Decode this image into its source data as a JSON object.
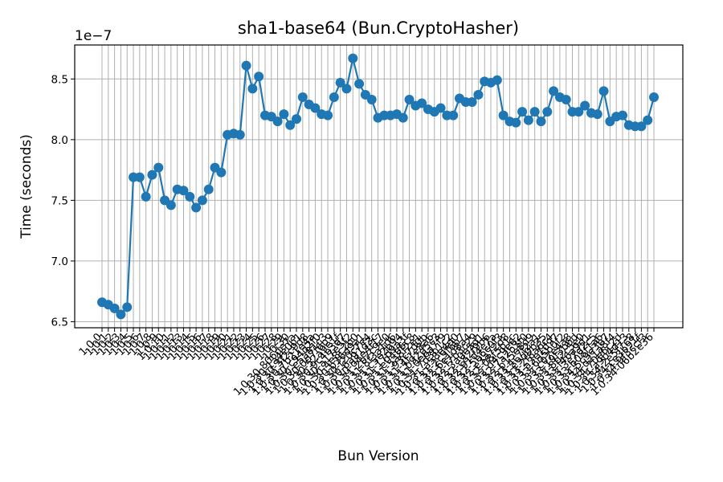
{
  "chart_data": {
    "type": "line",
    "title": "sha1-base64 (Bun.CryptoHasher)",
    "xlabel": "Bun Version",
    "ylabel": "Time (seconds)",
    "y_multiplier": "1e−7",
    "ylim": [
      6.45,
      8.78
    ],
    "yticks": [
      "6.5",
      "7.0",
      "7.5",
      "8.0",
      "8.5"
    ],
    "grid": true,
    "color": "#1f77b4",
    "categories": [
      "1.0.0",
      "1.0.1",
      "1.0.2",
      "1.0.3",
      "1.0.4",
      "1.0.5",
      "1.0.6",
      "1.0.7",
      "1.0.8",
      "1.0.9",
      "1.0.10",
      "1.0.11",
      "1.0.12",
      "1.0.13",
      "1.0.14",
      "1.0.15",
      "1.0.16",
      "1.0.17",
      "1.0.18",
      "1.0.19",
      "1.0.20",
      "1.0.21",
      "1.0.22",
      "1.0.23",
      "1.0.24",
      "1.0.25",
      "1.0.26",
      "1.0.27",
      "1.0.28",
      "1.0.29",
      "1.0.30",
      "1.0.30-806de7a",
      "1.0.30-1a4e0b1",
      "1.0.30-3f2c9d8",
      "1.0.30-7b21e4a",
      "1.0.30-c94d2f0",
      "1.0.30-e5a81c3",
      "1.0.30-0d7f6b9",
      "1.0.30-52a9e1f",
      "1.0.30-9c4b3d7",
      "1.0.30-a17e5f2",
      "1.0.30-4e8c2b0",
      "1.0.30-b36d9a1",
      "1.0.30-f20c7e4",
      "1.0.30-6a91d3c",
      "1.0.30-d8e4f17",
      "1.0.31-2b7c9e0",
      "1.0.31-8f3a1d6",
      "1.0.31-c5e2b94",
      "1.0.31-17d9a3f",
      "1.0.31-e04b6c8",
      "1.0.31-5a8f2e1",
      "1.0.31-93c7d0b",
      "1.0.31-4f1e8a6",
      "1.0.31-b92d5c3",
      "1.0.31-0e6a7f9",
      "1.0.31-7d3b1c2",
      "1.0.31-a58e4d0",
      "1.0.31-2c9f6b7",
      "1.0.32-6e1d8a4",
      "1.0.32-f7b3c29",
      "1.0.32-3a0e5d1",
      "1.0.32-c82f9b6",
      "1.0.32-91d4e7a",
      "1.0.32-5b6c0f3",
      "1.0.32-e3a72d8",
      "1.0.32-08f5b1c",
      "1.0.32-d4c9e62",
      "1.0.32-7a2b3f0",
      "1.0.32-b15e8d9",
      "1.0.33-4c7f2a1",
      "1.0.33-e9d0b35",
      "1.0.33-2f8a6c4",
      "1.0.33-a3e1d97",
      "1.0.33-6d5b0f2",
      "1.0.33-c07e4a8",
      "1.0.33-19f3b6d",
      "1.0.33-8b2c5e0",
      "1.0.33-f46a9d1",
      "1.0.33-3e7d2c5",
      "1.0.33-b08f1a6",
      "1.0.34-5c9e3b7",
      "1.0.34-d21a8f4",
      "1.0.34-70e6c2d",
      "1.0.34-a9b4d13",
      "1.0.34-2e5f7c8",
      "1.0.34-ce3b91f",
      "1.0.34-9f3ccf3",
      "1.0.34-06b2e36"
    ],
    "values": [
      6.66,
      6.64,
      6.61,
      6.56,
      6.62,
      7.69,
      7.69,
      7.53,
      7.71,
      7.77,
      7.5,
      7.46,
      7.59,
      7.58,
      7.53,
      7.44,
      7.5,
      7.59,
      7.77,
      7.73,
      8.04,
      8.05,
      8.04,
      8.61,
      8.42,
      8.52,
      8.2,
      8.19,
      8.15,
      8.21,
      8.12,
      8.17,
      8.35,
      8.29,
      8.26,
      8.21,
      8.2,
      8.35,
      8.47,
      8.42,
      8.67,
      8.46,
      8.37,
      8.33,
      8.18,
      8.2,
      8.2,
      8.21,
      8.18,
      8.33,
      8.28,
      8.3,
      8.25,
      8.23,
      8.26,
      8.2,
      8.2,
      8.34,
      8.31,
      8.31,
      8.37,
      8.48,
      8.47,
      8.49,
      8.2,
      8.15,
      8.14,
      8.23,
      8.16,
      8.23,
      8.15,
      8.23,
      8.4,
      8.35,
      8.33,
      8.23,
      8.23,
      8.28,
      8.22,
      8.21,
      8.4,
      8.15,
      8.19,
      8.2,
      8.12,
      8.11,
      8.11,
      8.16,
      8.35
    ]
  }
}
